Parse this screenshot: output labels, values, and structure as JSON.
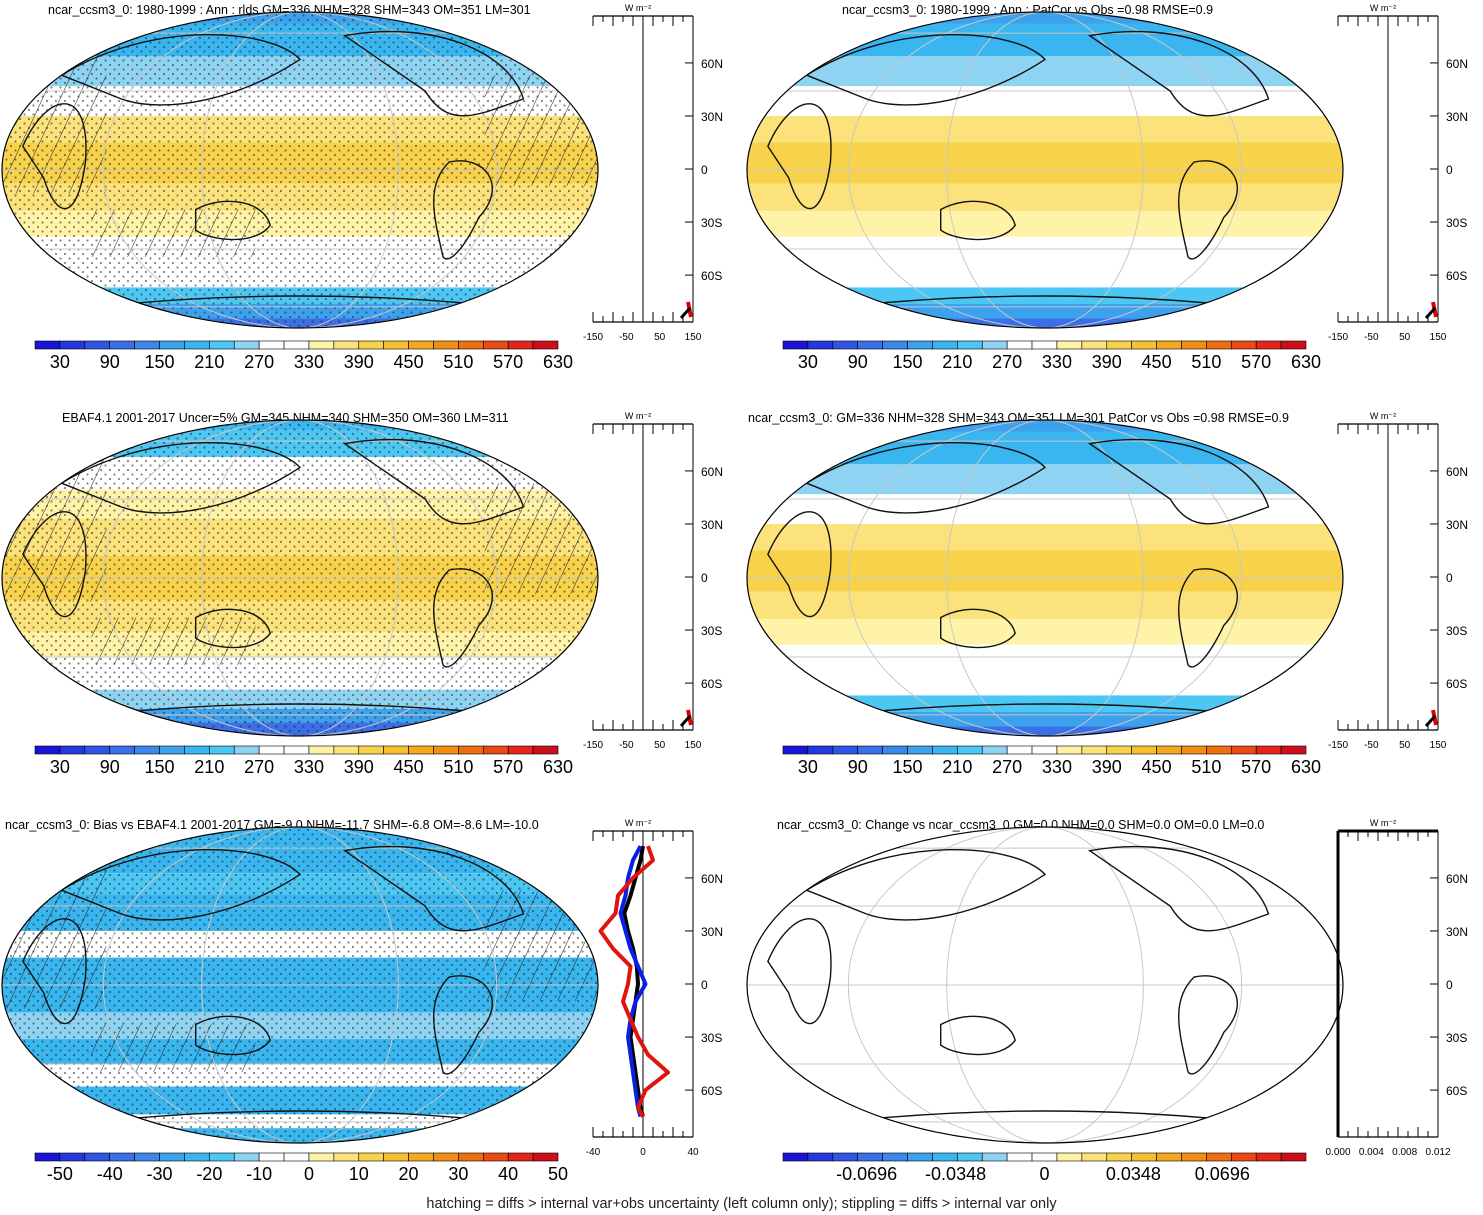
{
  "footer_note": "hatching = diffs > internal var+obs uncertainty (left column only); stippling = diffs > internal var only",
  "colors": {
    "abs_scale": [
      "#1a14d6",
      "#2438e0",
      "#2f55e6",
      "#3a6fe8",
      "#3b87ea",
      "#3da2ee",
      "#39b6f0",
      "#4cc6f2",
      "#8fd3f2",
      "#ffffff",
      "#ffffff",
      "#fff3a8",
      "#fbe27a",
      "#f8d24a",
      "#f6c02f",
      "#f4a81e",
      "#f28e14",
      "#ee6e12",
      "#ea4a14",
      "#e2261a",
      "#cc0f1a"
    ],
    "diff_scale": [
      "#1a14d6",
      "#2438e0",
      "#2f55e6",
      "#3a6fe8",
      "#3b87ea",
      "#3da2ee",
      "#39b6f0",
      "#4cc6f2",
      "#8fd3f2",
      "#ffffff",
      "#ffffff",
      "#fff3a8",
      "#fbe27a",
      "#f8d24a",
      "#f6c02f",
      "#f4a81e",
      "#f28e14",
      "#ee6e12",
      "#ea4a14",
      "#e2261a",
      "#cc0f1a"
    ]
  },
  "chart_data": [
    {
      "type": "heatmap",
      "panel": "model-mean",
      "title": "ncar_ccsm3_0: 1980-1999 : Ann : rlds GM=336 NHM=328 SHM=343 OM=351 LM=301",
      "colorbar_ticks": [
        "30",
        "90",
        "150",
        "210",
        "270",
        "330",
        "390",
        "450",
        "510",
        "570",
        "630"
      ],
      "lat_ticks": [
        "60N",
        "30N",
        "0",
        "30S",
        "60S"
      ],
      "unit_label": "W m⁻²",
      "zonal_x_ticks": [
        "-150",
        "-50",
        "50",
        "150"
      ],
      "overlays": [
        "hatching",
        "stippling"
      ]
    },
    {
      "type": "heatmap",
      "panel": "model-mean-patcor",
      "title": "ncar_ccsm3_0: 1980-1999 : Ann : PatCor vs Obs =0.98 RMSE=0.9",
      "colorbar_ticks": [
        "30",
        "90",
        "150",
        "210",
        "270",
        "330",
        "390",
        "450",
        "510",
        "570",
        "630"
      ],
      "lat_ticks": [
        "60N",
        "30N",
        "0",
        "30S",
        "60S"
      ],
      "unit_label": "W m⁻²",
      "zonal_x_ticks": [
        "-150",
        "-50",
        "50",
        "150"
      ]
    },
    {
      "type": "heatmap",
      "panel": "observations",
      "title": "EBAF4.1 2001-2017 Uncer=5% GM=345 NHM=340 SHM=350 OM=360 LM=311",
      "colorbar_ticks": [
        "30",
        "90",
        "150",
        "210",
        "270",
        "330",
        "390",
        "450",
        "510",
        "570",
        "630"
      ],
      "lat_ticks": [
        "60N",
        "30N",
        "0",
        "30S",
        "60S"
      ],
      "unit_label": "W m⁻²",
      "zonal_x_ticks": [
        "-150",
        "-50",
        "50",
        "150"
      ],
      "overlays": [
        "hatching",
        "stippling"
      ]
    },
    {
      "type": "heatmap",
      "panel": "model-summary",
      "title": "ncar_ccsm3_0: GM=336 NHM=328 SHM=343 OM=351 LM=301 PatCor vs Obs =0.98 RMSE=0.9",
      "colorbar_ticks": [
        "30",
        "90",
        "150",
        "210",
        "270",
        "330",
        "390",
        "450",
        "510",
        "570",
        "630"
      ],
      "lat_ticks": [
        "60N",
        "30N",
        "0",
        "30S",
        "60S"
      ],
      "unit_label": "W m⁻²",
      "zonal_x_ticks": [
        "-150",
        "-50",
        "50",
        "150"
      ]
    },
    {
      "type": "heatmap",
      "panel": "bias",
      "title": "ncar_ccsm3_0: Bias vs EBAF4.1 2001-2017 GM=-9.0 NHM=-11.7 SHM=-6.8 OM=-8.6 LM=-10.0",
      "colorbar_ticks": [
        "-50",
        "-40",
        "-30",
        "-20",
        "-10",
        "0",
        "10",
        "20",
        "30",
        "40",
        "50"
      ],
      "lat_ticks": [
        "60N",
        "30N",
        "0",
        "30S",
        "60S"
      ],
      "unit_label": "W m⁻²",
      "zonal_x_ticks": [
        "-40",
        "0",
        "40"
      ],
      "overlays": [
        "hatching",
        "stippling"
      ],
      "zonal_series": [
        {
          "color": "#000000",
          "lat": [
            78,
            70,
            60,
            50,
            40,
            30,
            20,
            10,
            0,
            -10,
            -20,
            -30,
            -40,
            -50,
            -60,
            -70,
            -75
          ],
          "value": [
            0,
            -2,
            -6,
            -10,
            -15,
            -12,
            -8,
            -5,
            -4,
            -6,
            -8,
            -10,
            -8,
            -6,
            -4,
            -2,
            0
          ]
        },
        {
          "color": "#0a1ee6",
          "lat": [
            78,
            70,
            60,
            50,
            40,
            30,
            20,
            10,
            0,
            -10,
            -20,
            -30,
            -40,
            -50,
            -60,
            -70,
            -75
          ],
          "value": [
            -2,
            -8,
            -12,
            -14,
            -18,
            -14,
            -10,
            -4,
            2,
            -6,
            -10,
            -12,
            -10,
            -8,
            -6,
            -4,
            -2
          ]
        },
        {
          "color": "#e0140f",
          "lat": [
            78,
            70,
            60,
            50,
            40,
            30,
            20,
            10,
            0,
            -10,
            -20,
            -30,
            -40,
            -50,
            -60,
            -70,
            -75
          ],
          "value": [
            4,
            8,
            -8,
            -20,
            -22,
            -34,
            -24,
            -10,
            -12,
            -16,
            -10,
            -4,
            4,
            20,
            2,
            -4,
            0
          ]
        }
      ]
    },
    {
      "type": "heatmap",
      "panel": "change",
      "title": "ncar_ccsm3_0: Change vs ncar_ccsm3_0 GM=0.0 NHM=0.0 SHM=0.0 OM=0.0 LM=0.0",
      "colorbar_ticks": [
        "-0.0696",
        "-0.0348",
        "0",
        "0.0348",
        "0.0696"
      ],
      "lat_ticks": [
        "60N",
        "30N",
        "0",
        "30S",
        "60S"
      ],
      "unit_label": "W m⁻²",
      "zonal_x_ticks": [
        "0.000",
        "0.004",
        "0.008",
        "0.012"
      ]
    }
  ]
}
